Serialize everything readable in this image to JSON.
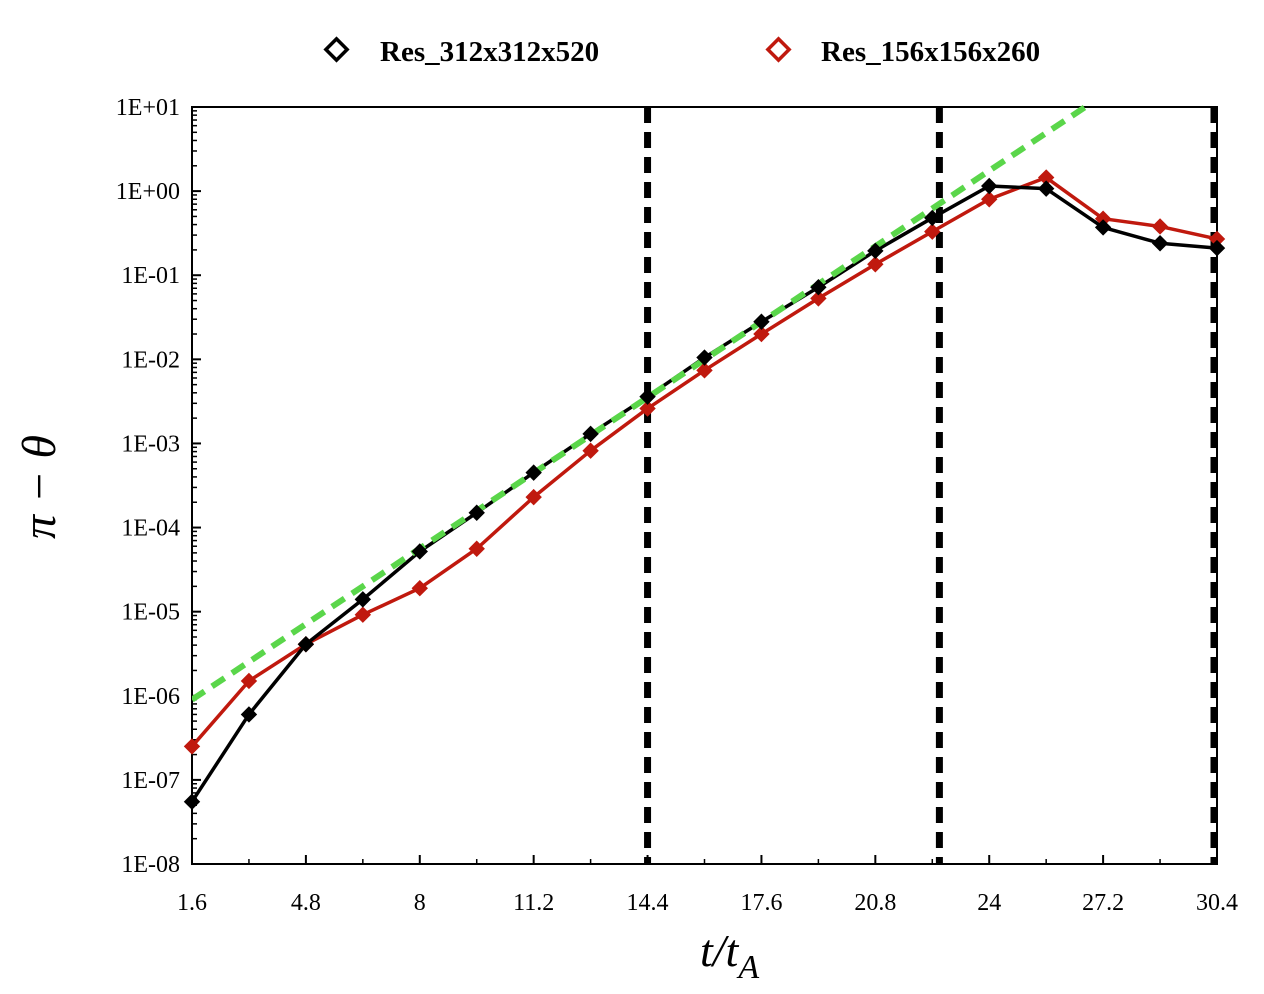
{
  "chart_data": {
    "type": "line",
    "y_scale": "log",
    "title": "",
    "xlabel_main": "t/t",
    "xlabel_sub": "A",
    "ylabel": "π − θ",
    "xlim": [
      1.6,
      30.4
    ],
    "ylim_exp": [
      -8,
      1
    ],
    "x_ticks": [
      1.6,
      4.8,
      8,
      11.2,
      14.4,
      17.6,
      20.8,
      24,
      27.2,
      30.4
    ],
    "x_tick_labels": [
      "1.6",
      "4.8",
      "8",
      "11.2",
      "14.4",
      "17.6",
      "20.8",
      "24",
      "27.2",
      "30.4"
    ],
    "y_tick_exps": [
      1,
      0,
      -1,
      -2,
      -3,
      -4,
      -5,
      -6,
      -7,
      -8
    ],
    "y_tick_labels": [
      "1E+01",
      "1E+00",
      "1E-01",
      "1E-02",
      "1E-03",
      "1E-04",
      "1E-05",
      "1E-06",
      "1E-07",
      "1E-08"
    ],
    "legend_position": "top",
    "series": [
      {
        "name": "Res_312x312x520",
        "color": "#000000",
        "x": [
          1.6,
          3.2,
          4.8,
          6.4,
          8.0,
          9.6,
          11.2,
          12.8,
          14.4,
          16.0,
          17.6,
          19.2,
          20.8,
          22.4,
          24.0,
          25.6,
          27.2,
          28.8,
          30.4
        ],
        "y": [
          5.5e-08,
          6e-07,
          4.1e-06,
          1.4e-05,
          5.2e-05,
          0.00015,
          0.00045,
          0.0013,
          0.0036,
          0.0105,
          0.028,
          0.072,
          0.195,
          0.48,
          1.15,
          1.07,
          0.37,
          0.24,
          0.21
        ]
      },
      {
        "name": "Res_156x156x260",
        "color": "#c0190e",
        "x": [
          1.6,
          3.2,
          4.8,
          6.4,
          8.0,
          9.6,
          11.2,
          12.8,
          14.4,
          16.0,
          17.6,
          19.2,
          20.8,
          22.4,
          24.0,
          25.6,
          27.2,
          28.8,
          30.4
        ],
        "y": [
          2.5e-07,
          1.5e-06,
          4.1e-06,
          9.2e-06,
          1.9e-05,
          5.6e-05,
          0.00023,
          0.00082,
          0.0026,
          0.0074,
          0.02,
          0.053,
          0.135,
          0.33,
          0.8,
          1.45,
          0.47,
          0.38,
          0.27
        ]
      }
    ],
    "fit_line": {
      "name": "exponential fit",
      "color": "#5ad64a",
      "x": [
        1.6,
        26.7
      ],
      "y": [
        9e-07,
        10
      ]
    },
    "vertical_lines_x": [
      14.4,
      22.6,
      30.4
    ]
  }
}
